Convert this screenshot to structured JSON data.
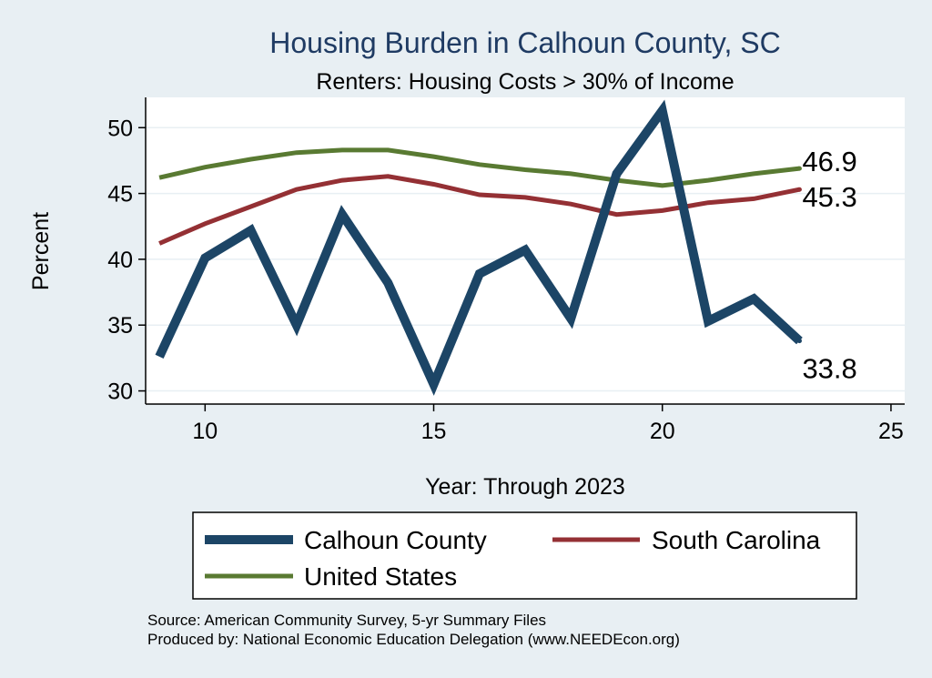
{
  "chart_data": {
    "type": "line",
    "title": "Housing Burden in Calhoun County, SC",
    "subtitle": "Renters: Housing Costs > 30% of Income",
    "xlabel": "Year: Through 2023",
    "ylabel": "Percent",
    "xlim": [
      8.7,
      25.3
    ],
    "ylim": [
      29.0,
      52.3
    ],
    "xticks": [
      10,
      15,
      20,
      25
    ],
    "yticks": [
      30,
      35,
      40,
      45,
      50
    ],
    "grid": true,
    "x": [
      9,
      10,
      11,
      12,
      13,
      14,
      15,
      16,
      17,
      18,
      19,
      20,
      21,
      22,
      23
    ],
    "series": [
      {
        "name": "Calhoun County",
        "color": "#1c4566",
        "values": [
          32.6,
          40.1,
          42.2,
          35.0,
          43.4,
          38.2,
          30.5,
          38.9,
          40.7,
          35.5,
          46.5,
          51.3,
          35.3,
          37.0,
          33.8
        ],
        "end_label": "33.8"
      },
      {
        "name": "South Carolina",
        "color": "#943034",
        "values": [
          41.2,
          42.7,
          44.0,
          45.3,
          46.0,
          46.3,
          45.7,
          44.9,
          44.7,
          44.2,
          43.4,
          43.7,
          44.3,
          44.6,
          45.3
        ],
        "end_label": "45.3"
      },
      {
        "name": "United States",
        "color": "#597a32",
        "values": [
          46.2,
          47.0,
          47.6,
          48.1,
          48.3,
          48.3,
          47.8,
          47.2,
          46.8,
          46.5,
          46.0,
          45.6,
          46.0,
          46.5,
          46.9
        ],
        "end_label": "46.9"
      }
    ],
    "legend": {
      "position": "bottom",
      "entries": [
        "Calhoun County",
        "South Carolina",
        "United States"
      ]
    }
  },
  "footer": {
    "source": "Source: American Community Survey, 5-yr Summary Files",
    "produced_by": "Produced by: National Economic Education Delegation (www.NEEDEcon.org)"
  }
}
